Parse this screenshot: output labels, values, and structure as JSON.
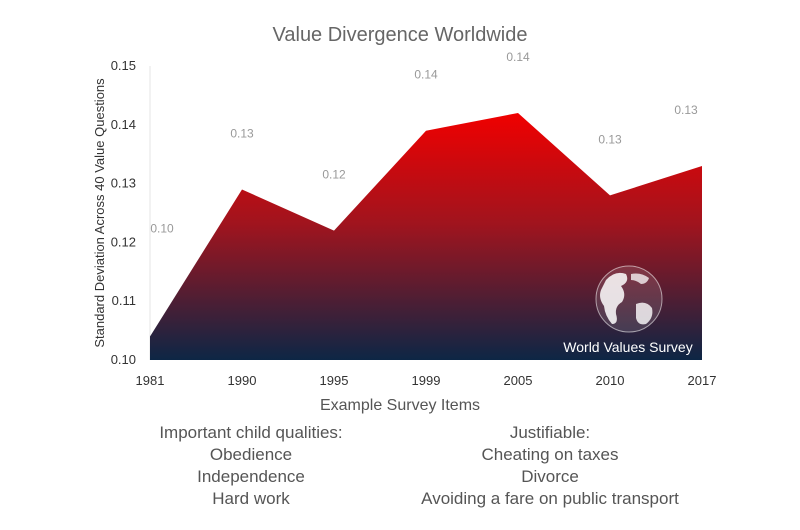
{
  "chart_data": {
    "type": "area",
    "title": "Value Divergence Worldwide",
    "xlabel": "Example Survey Items",
    "ylabel": "Standard Deviation Across 40 Value Questions",
    "categories": [
      "1981",
      "1990",
      "1995",
      "1999",
      "2005",
      "2010",
      "2017"
    ],
    "values": [
      0.104,
      0.129,
      0.122,
      0.139,
      0.142,
      0.128,
      0.133
    ],
    "data_labels": [
      "0.10",
      "0.13",
      "0.12",
      "0.14",
      "0.14",
      "0.13",
      "0.13"
    ],
    "yticks": [
      "0.10",
      "0.11",
      "0.12",
      "0.13",
      "0.14",
      "0.15"
    ],
    "ylim": [
      0.1,
      0.15
    ],
    "grid": false,
    "fill_gradient": [
      "#f00000",
      "#0d2645"
    ],
    "watermark": "World Values Survey"
  },
  "notes": {
    "left": [
      "Important child qualities:",
      "Obedience",
      "Independence",
      "Hard work"
    ],
    "right": [
      "Justifiable:",
      "Cheating on taxes",
      "Divorce",
      "Avoiding a fare on public transport"
    ]
  }
}
